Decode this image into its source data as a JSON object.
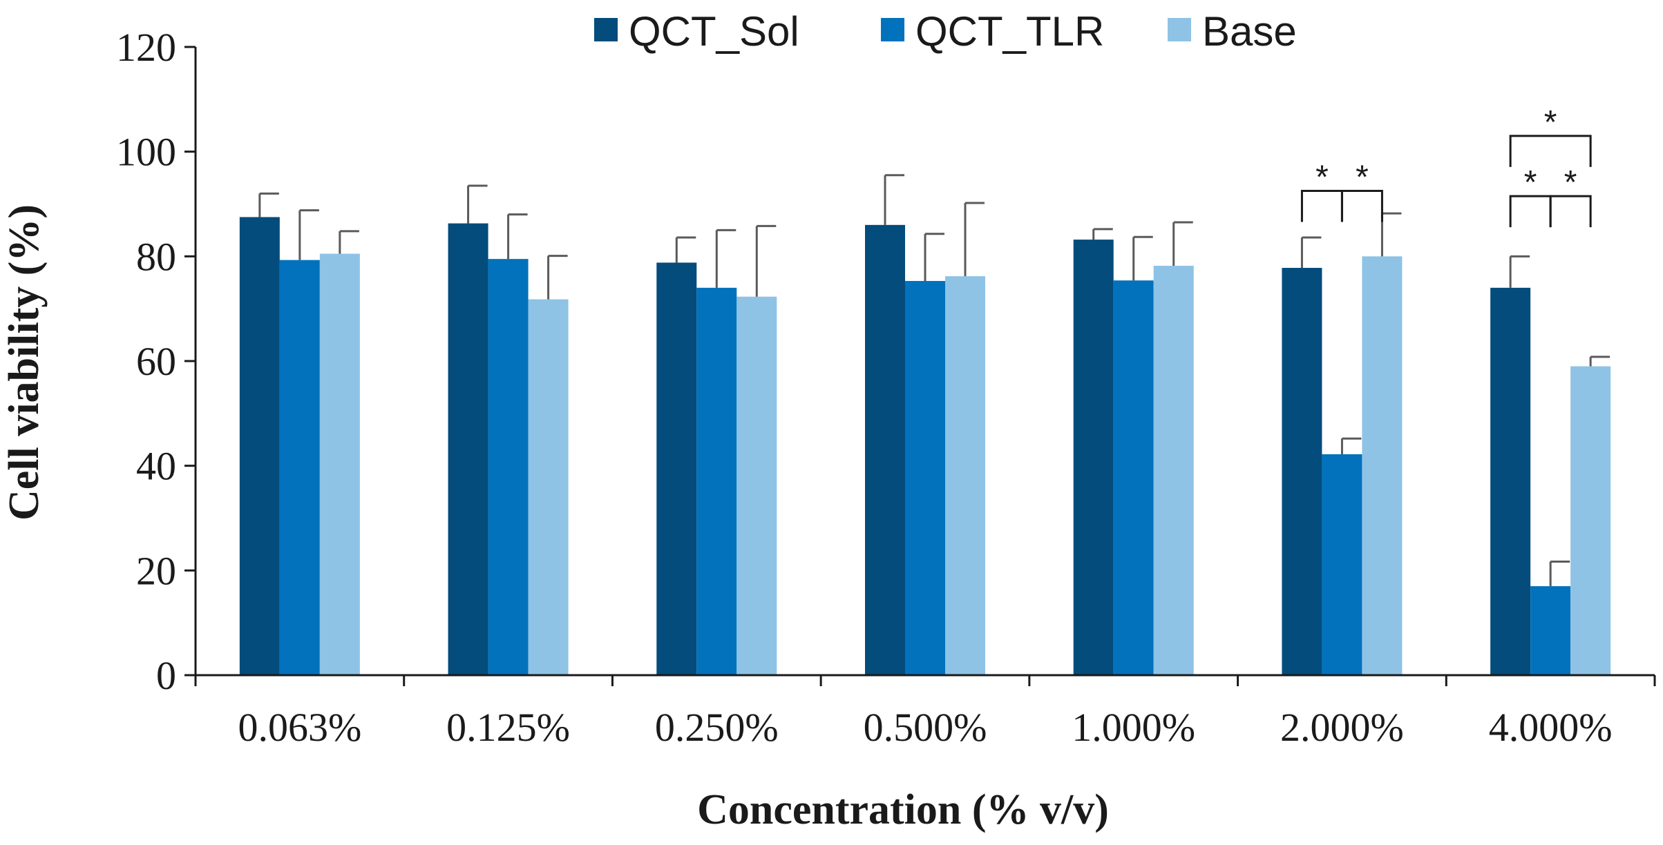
{
  "chart_data": {
    "type": "bar",
    "categories": [
      "0.063%",
      "0.125%",
      "0.250%",
      "0.500%",
      "1.000%",
      "2.000%",
      "4.000%"
    ],
    "series": [
      {
        "name": "QCT_Sol",
        "color": "#034c7c",
        "values": [
          87.5,
          86.3,
          78.8,
          86.0,
          83.2,
          77.8,
          74.0
        ],
        "errors": [
          4.5,
          7.2,
          4.8,
          9.5,
          2.0,
          5.8,
          6.0
        ]
      },
      {
        "name": "QCT_TLR",
        "color": "#0372bd",
        "values": [
          79.3,
          79.5,
          74.0,
          75.3,
          75.4,
          42.2,
          17.0
        ],
        "errors": [
          9.5,
          8.5,
          11.0,
          9.0,
          8.3,
          3.0,
          4.7
        ]
      },
      {
        "name": "Base",
        "color": "#8ec3e5",
        "values": [
          80.5,
          71.8,
          72.3,
          76.2,
          78.2,
          80.0,
          59.0
        ],
        "errors": [
          4.3,
          8.3,
          13.5,
          14.0,
          8.3,
          8.2,
          1.8
        ]
      }
    ],
    "xlabel": "Concentration (% v/v)",
    "ylabel": "Cell viability (%)",
    "ylim": [
      0,
      120
    ],
    "yticks": [
      0,
      20,
      40,
      60,
      80,
      100,
      120
    ],
    "grid": false,
    "legend_position": "top-center",
    "significance": [
      {
        "category": "2.000%",
        "from_series": 0,
        "to_series": 1,
        "level": 92.5,
        "label": "*"
      },
      {
        "category": "2.000%",
        "from_series": 1,
        "to_series": 2,
        "level": 92.5,
        "label": "*"
      },
      {
        "category": "4.000%",
        "from_series": 0,
        "to_series": 1,
        "level": 91.5,
        "label": "*"
      },
      {
        "category": "4.000%",
        "from_series": 1,
        "to_series": 2,
        "level": 91.5,
        "label": "*"
      },
      {
        "category": "4.000%",
        "from_series": 0,
        "to_series": 2,
        "level": 103.0,
        "label": "*"
      }
    ]
  }
}
